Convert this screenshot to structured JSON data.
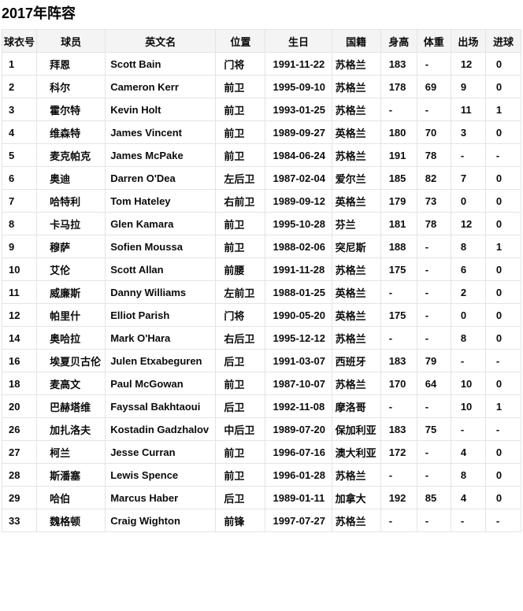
{
  "page_title": "2017年阵容",
  "table": {
    "columns": [
      "球衣号",
      "球员",
      "英文名",
      "位置",
      "生日",
      "国籍",
      "身高",
      "体重",
      "出场",
      "进球"
    ],
    "column_keys": [
      "jersey-number",
      "player-name",
      "english-name",
      "position",
      "birthday",
      "nationality",
      "height",
      "weight",
      "appearances",
      "goals"
    ],
    "rows": [
      [
        "1",
        "拜恩",
        "Scott Bain",
        "门将",
        "1991-11-22",
        "苏格兰",
        "183",
        "-",
        "12",
        "0"
      ],
      [
        "2",
        "科尔",
        "Cameron Kerr",
        "前卫",
        "1995-09-10",
        "苏格兰",
        "178",
        "69",
        "9",
        "0"
      ],
      [
        "3",
        "霍尔特",
        "Kevin Holt",
        "前卫",
        "1993-01-25",
        "苏格兰",
        "-",
        "-",
        "11",
        "1"
      ],
      [
        "4",
        "维森特",
        "James Vincent",
        "前卫",
        "1989-09-27",
        "英格兰",
        "180",
        "70",
        "3",
        "0"
      ],
      [
        "5",
        "麦克帕克",
        "James McPake",
        "前卫",
        "1984-06-24",
        "苏格兰",
        "191",
        "78",
        "-",
        "-"
      ],
      [
        "6",
        "奥迪",
        "Darren O'Dea",
        "左后卫",
        "1987-02-04",
        "爱尔兰",
        "185",
        "82",
        "7",
        "0"
      ],
      [
        "7",
        "哈特利",
        "Tom Hateley",
        "右前卫",
        "1989-09-12",
        "英格兰",
        "179",
        "73",
        "0",
        "0"
      ],
      [
        "8",
        "卡马拉",
        "Glen Kamara",
        "前卫",
        "1995-10-28",
        "芬兰",
        "181",
        "78",
        "12",
        "0"
      ],
      [
        "9",
        "穆萨",
        "Sofien Moussa",
        "前卫",
        "1988-02-06",
        "突尼斯",
        "188",
        "-",
        "8",
        "1"
      ],
      [
        "10",
        "艾伦",
        "Scott Allan",
        "前腰",
        "1991-11-28",
        "苏格兰",
        "175",
        "-",
        "6",
        "0"
      ],
      [
        "11",
        "威廉斯",
        "Danny Williams",
        "左前卫",
        "1988-01-25",
        "英格兰",
        "-",
        "-",
        "2",
        "0"
      ],
      [
        "12",
        "帕里什",
        "Elliot Parish",
        "门将",
        "1990-05-20",
        "英格兰",
        "175",
        "-",
        "0",
        "0"
      ],
      [
        "14",
        "奥哈拉",
        "Mark O'Hara",
        "右后卫",
        "1995-12-12",
        "苏格兰",
        "-",
        "-",
        "8",
        "0"
      ],
      [
        "16",
        "埃夏贝古伦",
        "Julen Etxabeguren",
        "后卫",
        "1991-03-07",
        "西班牙",
        "183",
        "79",
        "-",
        "-"
      ],
      [
        "18",
        "麦高文",
        "Paul McGowan",
        "前卫",
        "1987-10-07",
        "苏格兰",
        "170",
        "64",
        "10",
        "0"
      ],
      [
        "20",
        "巴赫塔维",
        "Fayssal Bakhtaoui",
        "后卫",
        "1992-11-08",
        "摩洛哥",
        "-",
        "-",
        "10",
        "1"
      ],
      [
        "26",
        "加扎洛夫",
        "Kostadin Gadzhalov",
        "中后卫",
        "1989-07-20",
        "保加利亚",
        "183",
        "75",
        "-",
        "-"
      ],
      [
        "27",
        "柯兰",
        "Jesse Curran",
        "前卫",
        "1996-07-16",
        "澳大利亚",
        "172",
        "-",
        "4",
        "0"
      ],
      [
        "28",
        "斯潘塞",
        "Lewis Spence",
        "前卫",
        "1996-01-28",
        "苏格兰",
        "-",
        "-",
        "8",
        "0"
      ],
      [
        "29",
        "哈伯",
        "Marcus Haber",
        "后卫",
        "1989-01-11",
        "加拿大",
        "192",
        "85",
        "4",
        "0"
      ],
      [
        "33",
        "魏格顿",
        "Craig Wighton",
        "前锋",
        "1997-07-27",
        "苏格兰",
        "-",
        "-",
        "-",
        "-"
      ]
    ]
  },
  "colors": {
    "header_bg": "#f4f4f4",
    "border": "#e4e4e4",
    "text": "#0b0b0b",
    "page_bg": "#ffffff"
  }
}
